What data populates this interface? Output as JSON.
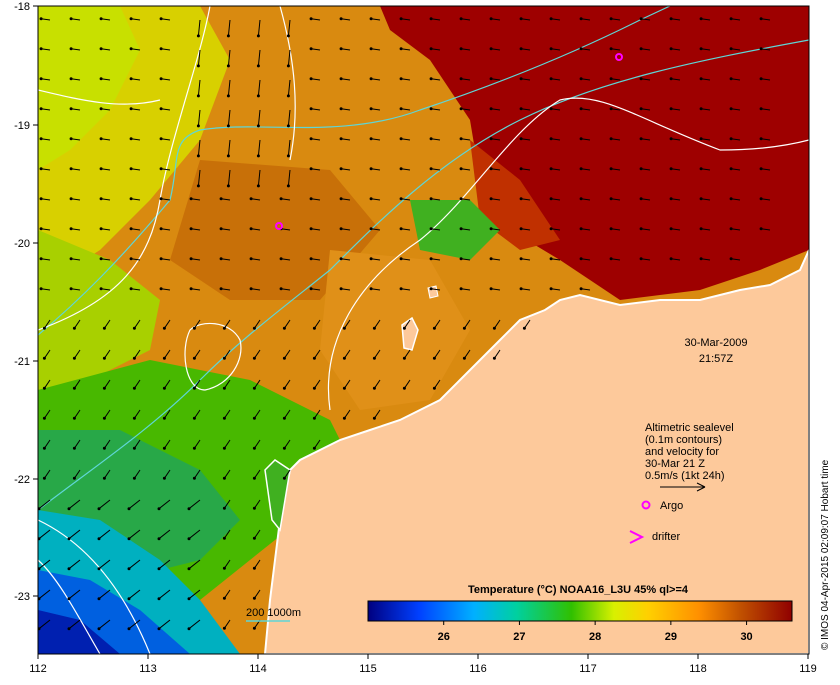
{
  "map": {
    "lon_ticks": [
      "112",
      "113",
      "114",
      "115",
      "116",
      "117",
      "118",
      "119"
    ],
    "lat_ticks": [
      "-18",
      "-19",
      "-20",
      "-21",
      "-22",
      "-23"
    ],
    "lon_range": [
      112,
      119
    ],
    "lat_range": [
      -23.5,
      -18
    ]
  },
  "timestamp": {
    "date": "30-Mar-2009",
    "time": "21:57Z"
  },
  "legend": {
    "sealevel_lines": [
      "Altimetric sealevel",
      "(0.1m contours)",
      "and velocity for",
      "30-Mar 21 Z",
      "0.5m/s (1kt 24h)"
    ],
    "argo_label": "Argo",
    "drifter_label": "drifter",
    "depth_label": "200  1000m"
  },
  "colorbar": {
    "title": "Temperature (°C) NOAA16_L3U 45% ql>=4",
    "ticks": [
      "26",
      "27",
      "28",
      "29",
      "30"
    ],
    "range": [
      25,
      30.6
    ]
  },
  "credit": "© IMOS 04-Apr-2015 02:09:07 Hobart time",
  "colors": {
    "land": "#fdc99b",
    "warm": "#9e0000",
    "orange": "#d97a00",
    "green": "#33b000",
    "cyan_contour": "#5fd6d6",
    "argo": "#ff00ff"
  }
}
